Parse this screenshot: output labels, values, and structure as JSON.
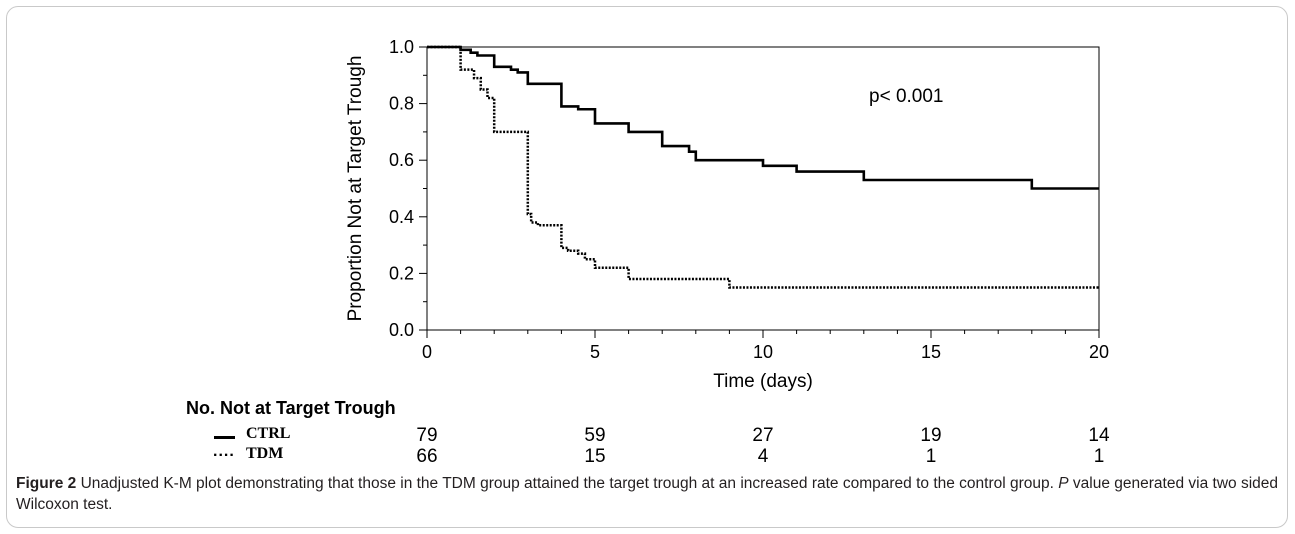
{
  "chart_data": {
    "type": "line",
    "subtype": "kaplan-meier step plot",
    "xlabel": "Time  (days)",
    "ylabel": "Proportion Not at Target Trough",
    "xlim": [
      0,
      20
    ],
    "ylim": [
      0,
      1.0
    ],
    "x_ticks": [
      "0",
      "5",
      "10",
      "15",
      "20"
    ],
    "y_ticks": [
      "0.0",
      "0.2",
      "0.4",
      "0.6",
      "0.8",
      "1.0"
    ],
    "annotation": "p< 0.001",
    "grid": false,
    "series": [
      {
        "name": "CTRL",
        "style": "solid",
        "x": [
          0,
          1,
          1.3,
          1.5,
          2,
          2.3,
          2.5,
          2.7,
          3,
          3.5,
          4,
          4.3,
          4.5,
          5,
          5.5,
          6,
          6.5,
          7,
          7.5,
          7.8,
          8,
          9,
          10,
          11,
          12,
          13,
          15,
          18,
          20
        ],
        "y": [
          1.0,
          0.99,
          0.98,
          0.97,
          0.93,
          0.93,
          0.92,
          0.91,
          0.87,
          0.87,
          0.79,
          0.79,
          0.78,
          0.73,
          0.73,
          0.7,
          0.7,
          0.65,
          0.65,
          0.63,
          0.6,
          0.6,
          0.58,
          0.56,
          0.56,
          0.53,
          0.53,
          0.5,
          0.5
        ]
      },
      {
        "name": "TDM",
        "style": "dotted",
        "x": [
          0,
          1,
          1.4,
          1.6,
          1.8,
          2,
          3,
          3.1,
          3.3,
          4,
          4.2,
          4.5,
          4.7,
          5,
          5.5,
          6,
          7,
          8,
          9,
          15,
          20
        ],
        "y": [
          1.0,
          0.92,
          0.89,
          0.85,
          0.82,
          0.7,
          0.41,
          0.38,
          0.37,
          0.29,
          0.28,
          0.27,
          0.25,
          0.22,
          0.22,
          0.18,
          0.18,
          0.18,
          0.15,
          0.15,
          0.15
        ]
      }
    ]
  },
  "risk_table": {
    "title": "No. Not at Target Trough",
    "times": [
      "0",
      "5",
      "10",
      "15",
      "20"
    ],
    "rows": [
      {
        "group": "CTRL",
        "marker": "—",
        "counts": [
          "79",
          "59",
          "27",
          "19",
          "14"
        ]
      },
      {
        "group": "TDM",
        "marker": "....",
        "counts": [
          "66",
          "15",
          "4",
          "1",
          "1"
        ]
      }
    ]
  },
  "caption": {
    "label": "Figure 2",
    "text1": "  Unadjusted K-M plot demonstrating that those in the TDM group attained the target trough at an increased rate compared to the control group. ",
    "p_italic": "P",
    "text2": " value generated via two sided Wilcoxon test."
  }
}
